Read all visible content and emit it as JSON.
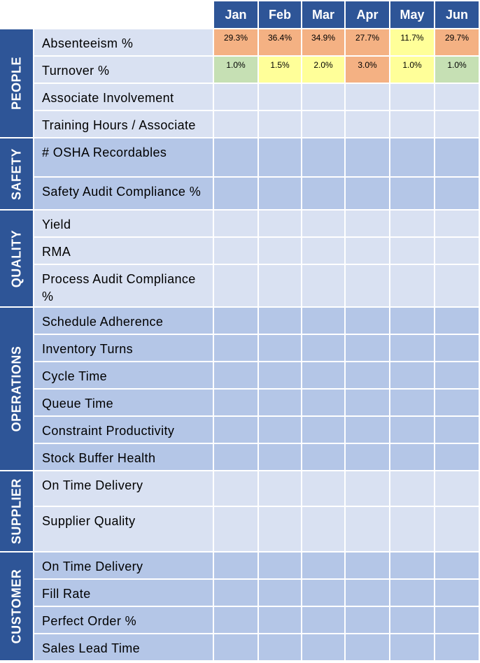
{
  "months": [
    "Jan",
    "Feb",
    "Mar",
    "Apr",
    "May",
    "Jun"
  ],
  "colors": {
    "header": "#2e5597",
    "row_light": "#d9e1f2",
    "row_dark": "#b4c6e7",
    "orange": "#f4b183",
    "yellow": "#ffff99",
    "green": "#c6e0b4"
  },
  "categories": [
    {
      "name": "PEOPLE",
      "shade": "light",
      "metrics": [
        {
          "label": "Absenteeism %",
          "values": [
            {
              "text": "29.3%",
              "status": "orange"
            },
            {
              "text": "36.4%",
              "status": "orange"
            },
            {
              "text": "34.9%",
              "status": "orange"
            },
            {
              "text": "27.7%",
              "status": "orange"
            },
            {
              "text": "11.7%",
              "status": "yellow"
            },
            {
              "text": "29.7%",
              "status": "orange"
            }
          ]
        },
        {
          "label": "Turnover %",
          "values": [
            {
              "text": "1.0%",
              "status": "green"
            },
            {
              "text": "1.5%",
              "status": "yellow"
            },
            {
              "text": "2.0%",
              "status": "yellow"
            },
            {
              "text": "3.0%",
              "status": "orange"
            },
            {
              "text": "1.0%",
              "status": "yellow"
            },
            {
              "text": "1.0%",
              "status": "green"
            }
          ]
        },
        {
          "label": "Associate Involvement",
          "values": []
        },
        {
          "label": "Training Hours / Associate",
          "values": []
        }
      ]
    },
    {
      "name": "SAFETY",
      "shade": "dark",
      "metrics": [
        {
          "label": "# OSHA Recordables",
          "values": []
        },
        {
          "label": "Safety Audit Compliance %",
          "values": []
        }
      ]
    },
    {
      "name": "QUALITY",
      "shade": "light",
      "metrics": [
        {
          "label": "Yield",
          "values": []
        },
        {
          "label": "RMA",
          "values": []
        },
        {
          "label": "Process Audit Compliance %",
          "values": []
        }
      ]
    },
    {
      "name": "OPERATIONS",
      "shade": "dark",
      "metrics": [
        {
          "label": "Schedule Adherence",
          "values": []
        },
        {
          "label": "Inventory Turns",
          "values": []
        },
        {
          "label": "Cycle Time",
          "values": []
        },
        {
          "label": "Queue Time",
          "values": []
        },
        {
          "label": "Constraint Productivity",
          "values": []
        },
        {
          "label": "Stock Buffer Health",
          "values": []
        }
      ]
    },
    {
      "name": "SUPPLIER",
      "shade": "light",
      "metrics": [
        {
          "label": "On Time Delivery",
          "values": []
        },
        {
          "label": "Supplier Quality",
          "values": []
        }
      ]
    },
    {
      "name": "CUSTOMER",
      "shade": "dark",
      "metrics": [
        {
          "label": "On Time Delivery",
          "values": []
        },
        {
          "label": "Fill Rate",
          "values": []
        },
        {
          "label": "Perfect Order %",
          "values": []
        },
        {
          "label": "Sales Lead Time",
          "values": []
        }
      ]
    }
  ]
}
